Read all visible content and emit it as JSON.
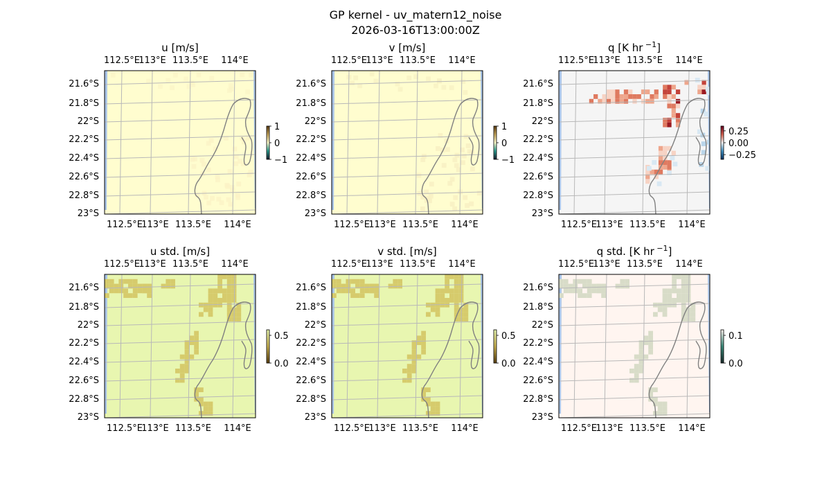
{
  "suptitle": {
    "line1": "GP kernel - uv_matern12_noise",
    "line2": "2026-03-16T13:00:00Z"
  },
  "chart_data": [
    {
      "id": "u",
      "type": "heatmap",
      "title_main": "u [m/s]",
      "title_sup": "",
      "x_ticks": [
        "112.5°E",
        "113°E",
        "113.5°E",
        "114°E"
      ],
      "y_ticks": [
        "21.6°S",
        "21.8°S",
        "22°S",
        "22.2°S",
        "22.4°S",
        "22.6°S",
        "22.8°S",
        "23°S"
      ],
      "colorbar": {
        "ticks": [
          "1",
          "0",
          "−1"
        ],
        "range": [
          -1,
          1
        ]
      },
      "base_color": "#fffdcf",
      "patch_color": "#fbf3c6",
      "patch_pattern": "scatter",
      "grid": true
    },
    {
      "id": "v",
      "type": "heatmap",
      "title_main": "v [m/s]",
      "title_sup": "",
      "x_ticks": [
        "112.5°E",
        "113°E",
        "113.5°E",
        "114°E"
      ],
      "y_ticks": [
        "21.6°S",
        "21.8°S",
        "22°S",
        "22.2°S",
        "22.4°S",
        "22.6°S",
        "22.8°S",
        "23°S"
      ],
      "colorbar": {
        "ticks": [
          "1",
          "0",
          "−1"
        ],
        "range": [
          -1,
          1
        ]
      },
      "base_color": "#fffdcf",
      "patch_color": "#f7efc2",
      "patch_pattern": "scatter",
      "grid": true
    },
    {
      "id": "q",
      "type": "heatmap",
      "title_main": "q [K hr",
      "title_sup": "−1",
      "title_tail": "]",
      "x_ticks": [
        "112.5°E",
        "113°E",
        "113.5°E",
        "114°E"
      ],
      "y_ticks": [
        "21.6°S",
        "21.8°S",
        "22°S",
        "22.2°S",
        "22.4°S",
        "22.6°S",
        "22.8°S",
        "23°S"
      ],
      "colorbar": {
        "ticks": [
          "0.25",
          "0.00",
          "−0.25"
        ],
        "range": [
          -0.35,
          0.35
        ]
      },
      "base_color": "#f5f5f5",
      "patch_color": "#e48066",
      "patch_pattern": "q",
      "grid": true
    },
    {
      "id": "u_std",
      "type": "heatmap",
      "title_main": "u std. [m/s]",
      "title_sup": "",
      "x_ticks": [
        "112.5°E",
        "113°E",
        "113.5°E",
        "114°E"
      ],
      "y_ticks": [
        "21.6°S",
        "21.8°S",
        "22°S",
        "22.2°S",
        "22.4°S",
        "22.6°S",
        "22.8°S",
        "23°S"
      ],
      "colorbar": {
        "ticks": [
          "0.5",
          "0.0"
        ],
        "range": [
          0,
          0.6
        ]
      },
      "base_color": "#e8f6b0",
      "patch_color": "#d6cb6c",
      "patch_pattern": "std",
      "grid": true
    },
    {
      "id": "v_std",
      "type": "heatmap",
      "title_main": "v std. [m/s]",
      "title_sup": "",
      "x_ticks": [
        "112.5°E",
        "113°E",
        "113.5°E",
        "114°E"
      ],
      "y_ticks": [
        "21.6°S",
        "21.8°S",
        "22°S",
        "22.2°S",
        "22.4°S",
        "22.6°S",
        "22.8°S",
        "23°S"
      ],
      "colorbar": {
        "ticks": [
          "0.5",
          "0.0"
        ],
        "range": [
          0,
          0.6
        ]
      },
      "base_color": "#e8f6b0",
      "patch_color": "#d6cb6c",
      "patch_pattern": "std",
      "grid": true
    },
    {
      "id": "q_std",
      "type": "heatmap",
      "title_main": "q std. [K hr",
      "title_sup": "−1",
      "title_tail": "]",
      "x_ticks": [
        "112.5°E",
        "113°E",
        "113.5°E",
        "114°E"
      ],
      "y_ticks": [
        "21.6°S",
        "21.8°S",
        "22°S",
        "22.2°S",
        "22.4°S",
        "22.6°S",
        "22.8°S",
        "23°S"
      ],
      "colorbar": {
        "ticks": [
          "0.1",
          "0.0"
        ],
        "range": [
          0,
          0.12
        ]
      },
      "base_color": "#fff5f0",
      "patch_color": "#d8dcc8",
      "patch_pattern": "std",
      "grid": true
    }
  ]
}
